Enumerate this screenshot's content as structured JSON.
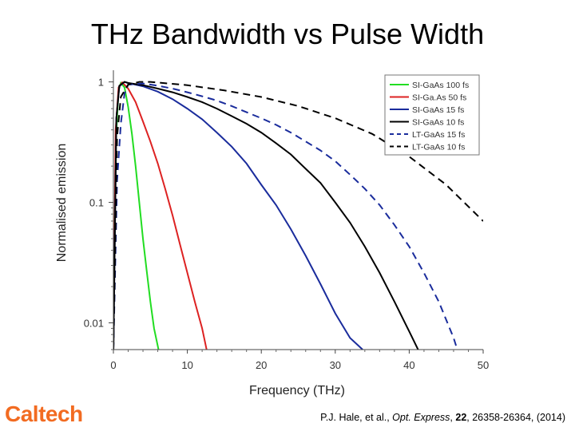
{
  "slide": {
    "title": "THz Bandwidth vs Pulse Width",
    "logo_text": "Caltech",
    "logo_color": "#f26b21",
    "citation": {
      "authors": "P.J. Hale, et al., ",
      "journal": "Opt. Express",
      "sep1": ", ",
      "volume": "22",
      "pages": ", 26358-26364, (2014)"
    }
  },
  "chart_data": {
    "type": "line",
    "title": "",
    "xlabel": "Frequency (THz)",
    "ylabel": "Normalised emission",
    "xlim": [
      0,
      50
    ],
    "ylim": [
      0.006,
      1.25
    ],
    "y_scale": "log",
    "x_ticks": [
      0,
      10,
      20,
      30,
      40,
      50
    ],
    "x_tick_labels": [
      "0",
      "10",
      "20",
      "30",
      "40",
      "50"
    ],
    "y_ticks": [
      1,
      0.1,
      0.01
    ],
    "y_tick_labels": [
      "1",
      "0.1",
      "0.01"
    ],
    "grid": false,
    "legend_position": "top-right",
    "series": [
      {
        "name": "SI-GaAs 100 fs",
        "color": "#22dd22",
        "dash": "solid",
        "x": [
          0,
          0.3,
          0.7,
          1.0,
          1.5,
          2.0,
          2.5,
          3.0,
          3.5,
          4.0,
          4.5,
          5.0,
          5.5,
          6.1
        ],
        "y": [
          0.006,
          0.3,
          0.85,
          0.98,
          0.9,
          0.62,
          0.37,
          0.2,
          0.1,
          0.05,
          0.027,
          0.015,
          0.009,
          0.006
        ]
      },
      {
        "name": "SI-Ga.As 50 fs",
        "color": "#dd2222",
        "dash": "solid",
        "x": [
          0,
          0.3,
          0.7,
          1.2,
          2,
          3,
          4,
          5,
          6,
          7,
          8,
          9,
          10,
          11,
          12,
          12.6
        ],
        "y": [
          0.006,
          0.4,
          0.9,
          0.99,
          0.88,
          0.68,
          0.47,
          0.32,
          0.21,
          0.13,
          0.078,
          0.045,
          0.026,
          0.015,
          0.009,
          0.006
        ]
      },
      {
        "name": "SI-GaAs 15 fs",
        "color": "#1a2c9c",
        "dash": "solid",
        "x": [
          0,
          0.4,
          0.8,
          1.5,
          2,
          4,
          6,
          8,
          10,
          12,
          14,
          16,
          18,
          20,
          22,
          24,
          26,
          28,
          30,
          32,
          33.7
        ],
        "y": [
          0.006,
          0.5,
          0.92,
          1.0,
          0.98,
          0.92,
          0.83,
          0.72,
          0.6,
          0.49,
          0.38,
          0.29,
          0.21,
          0.14,
          0.095,
          0.06,
          0.036,
          0.021,
          0.012,
          0.0075,
          0.006
        ]
      },
      {
        "name": "SI-GaAs 10 fs",
        "color": "#000000",
        "dash": "solid",
        "x": [
          0,
          0.4,
          0.8,
          1.5,
          2,
          4,
          6,
          8,
          10,
          12,
          14,
          16,
          18,
          20,
          22,
          24,
          26,
          28,
          30,
          32,
          34,
          36,
          38,
          40,
          41.2
        ],
        "y": [
          0.006,
          0.5,
          0.93,
          1.0,
          0.98,
          0.94,
          0.88,
          0.82,
          0.75,
          0.68,
          0.6,
          0.52,
          0.45,
          0.38,
          0.31,
          0.25,
          0.19,
          0.145,
          0.1,
          0.068,
          0.043,
          0.026,
          0.015,
          0.0085,
          0.006
        ]
      },
      {
        "name": "LT-GaAs 15 fs",
        "color": "#1a2c9c",
        "dash": "dashed",
        "x": [
          0,
          0.5,
          1,
          1.5,
          2,
          4,
          6,
          8,
          10,
          12,
          14,
          16,
          18,
          20,
          22,
          24,
          26,
          28,
          30,
          32,
          34,
          36,
          38,
          40,
          42,
          44,
          46,
          46.5
        ],
        "y": [
          0.006,
          0.15,
          0.45,
          0.8,
          0.95,
          0.97,
          0.93,
          0.88,
          0.82,
          0.76,
          0.7,
          0.63,
          0.56,
          0.5,
          0.44,
          0.38,
          0.32,
          0.27,
          0.22,
          0.17,
          0.13,
          0.095,
          0.065,
          0.043,
          0.026,
          0.015,
          0.0075,
          0.006
        ]
      },
      {
        "name": "LT-GaAs 10 fs",
        "color": "#000000",
        "dash": "dashed",
        "x": [
          0,
          0.5,
          1,
          2,
          3.5,
          5,
          10,
          15,
          20,
          25,
          30,
          35,
          40,
          45,
          50
        ],
        "y": [
          0.006,
          0.35,
          0.75,
          0.95,
          1.0,
          1.0,
          0.94,
          0.85,
          0.75,
          0.63,
          0.5,
          0.37,
          0.24,
          0.14,
          0.07
        ]
      }
    ]
  }
}
